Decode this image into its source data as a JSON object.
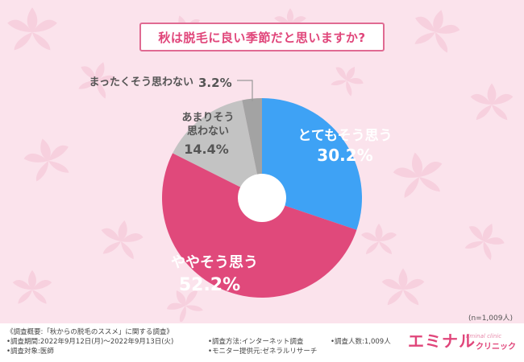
{
  "title": "秋は脱毛に良い季節だと思いますか?",
  "sample_note": "(n=1,009人)",
  "colors": {
    "background": "#fbe3ec",
    "accent": "#e0457a"
  },
  "chart_data": {
    "type": "pie",
    "donut": true,
    "start_angle_deg": 0,
    "direction": "clockwise",
    "slices": [
      {
        "label": "とてもそう思う",
        "value": 30.2,
        "display": "30.2%",
        "color": "#3ea2f5"
      },
      {
        "label": "ややそう思う",
        "value": 52.2,
        "display": "52.2%",
        "color": "#e0497b"
      },
      {
        "label": "あまりそう思わない",
        "value": 14.4,
        "display": "14.4%",
        "color": "#c3c3c3"
      },
      {
        "label": "まったくそう思わない",
        "value": 3.2,
        "display": "3.2%",
        "color": "#a3a3a3"
      }
    ]
  },
  "labels": {
    "s0_text": "とてもそう思う",
    "s0_pct": "30.2%",
    "s1_text": "ややそう思う",
    "s1_pct": "52.2%",
    "s2_line1": "あまりそう",
    "s2_line2": "思わない",
    "s2_pct": "14.4%",
    "s3_text": "まったくそう思わない",
    "s3_pct": "3.2%"
  },
  "footer": {
    "col1": [
      "《調査概要:「秋からの脱毛のススメ」に関する調査》",
      "•調査期間:2022年9月12日(月)～2022年9月13日(火)",
      "•調査対象:医師"
    ],
    "col2": [
      "•調査方法:インターネット調査",
      "•モニター提供元:ゼネラルリサーチ"
    ],
    "col3": [
      "•調査人数:1,009人"
    ],
    "logo_main": "エミナル",
    "logo_sub": "クリニック",
    "logo_script": "Eminal clinic"
  }
}
